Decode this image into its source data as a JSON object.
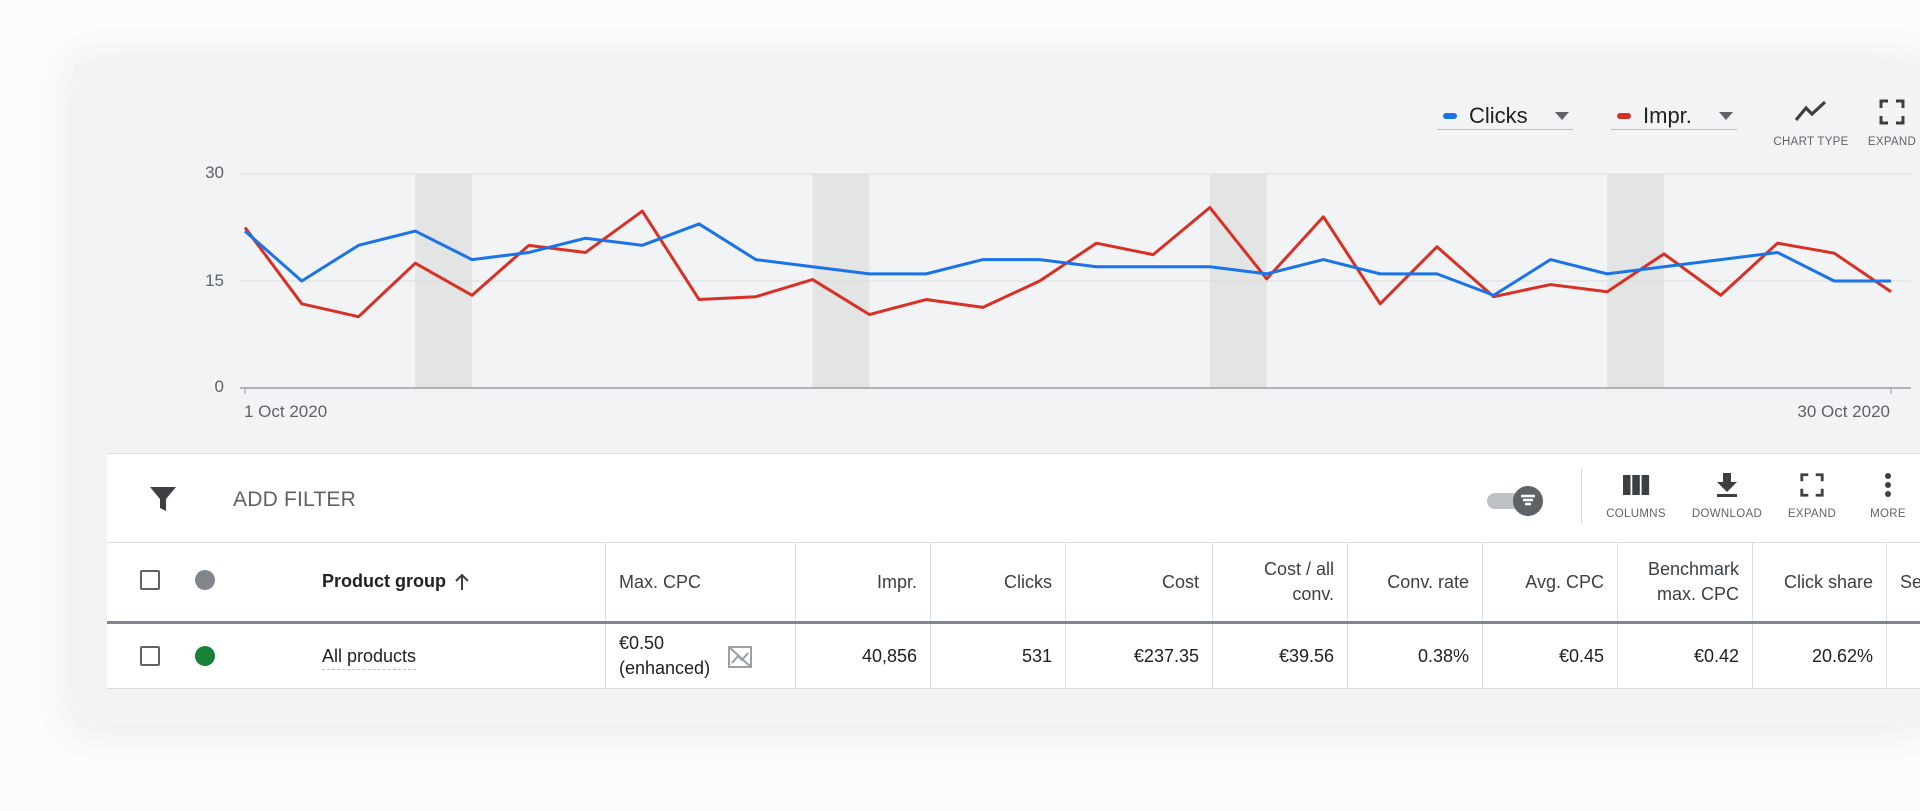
{
  "legend": {
    "clicks": {
      "label": "Clicks",
      "color": "#1a73e8"
    },
    "impr": {
      "label": "Impr.",
      "color": "#d93025"
    }
  },
  "chart_tools": {
    "chart_type": "CHART TYPE",
    "expand": "EXPAND"
  },
  "chart_data": {
    "type": "line",
    "title": "",
    "xlabel": "",
    "ylabel": "",
    "ylim": [
      0,
      30
    ],
    "y_ticks": [
      "0",
      "15",
      "30"
    ],
    "x_tick_labels": [
      "1 Oct 2020",
      "30 Oct 2020"
    ],
    "x": [
      1,
      2,
      3,
      4,
      5,
      6,
      7,
      8,
      9,
      10,
      11,
      12,
      13,
      14,
      15,
      16,
      17,
      18,
      19,
      20,
      21,
      22,
      23,
      24,
      25,
      26,
      27,
      28,
      29,
      30
    ],
    "weekend_bands": [
      [
        3,
        4
      ],
      [
        10,
        11
      ],
      [
        17,
        18
      ],
      [
        24,
        25
      ]
    ],
    "series": [
      {
        "name": "Clicks",
        "color": "#1a73e8",
        "values": [
          22,
          15,
          20,
          22,
          18,
          19,
          21,
          20,
          23,
          18,
          17,
          16,
          16,
          18,
          18,
          17,
          17,
          17,
          16,
          18,
          16,
          16,
          13,
          18,
          16,
          17,
          18,
          19,
          15,
          15
        ]
      },
      {
        "name": "Impr.",
        "color": "#d93025",
        "values": [
          22.5,
          11.8,
          10,
          17.5,
          13,
          20,
          19,
          24.8,
          12.4,
          12.8,
          15.2,
          10.3,
          12.4,
          11.3,
          15,
          20.3,
          18.7,
          25.3,
          15.3,
          24,
          11.8,
          19.8,
          12.8,
          14.5,
          13.5,
          18.8,
          13,
          20.3,
          18.9,
          13.5
        ]
      }
    ]
  },
  "toolbar": {
    "add_filter": "ADD FILTER",
    "columns": "COLUMNS",
    "download": "DOWNLOAD",
    "expand": "EXPAND",
    "more": "MORE"
  },
  "table": {
    "headers": {
      "product_group": "Product group",
      "max_cpc": "Max. CPC",
      "impr": "Impr.",
      "clicks": "Clicks",
      "cost": "Cost",
      "cost_all_conv_1": "Cost / all",
      "cost_all_conv_2": "conv.",
      "conv_rate": "Conv. rate",
      "avg_cpc": "Avg. CPC",
      "benchmark_1": "Benchmark",
      "benchmark_2": "max. CPC",
      "click_share": "Click share",
      "cut_off": "Se"
    },
    "row": {
      "product_group": "All products",
      "max_cpc_1": "€0.50",
      "max_cpc_2": "(enhanced)",
      "impr": "40,856",
      "clicks": "531",
      "cost": "€237.35",
      "cost_all_conv": "€39.56",
      "conv_rate": "0.38%",
      "avg_cpc": "€0.45",
      "benchmark": "€0.42",
      "click_share": "20.62%"
    },
    "status_colors": {
      "header": "#80868b",
      "row": "#188038"
    }
  }
}
